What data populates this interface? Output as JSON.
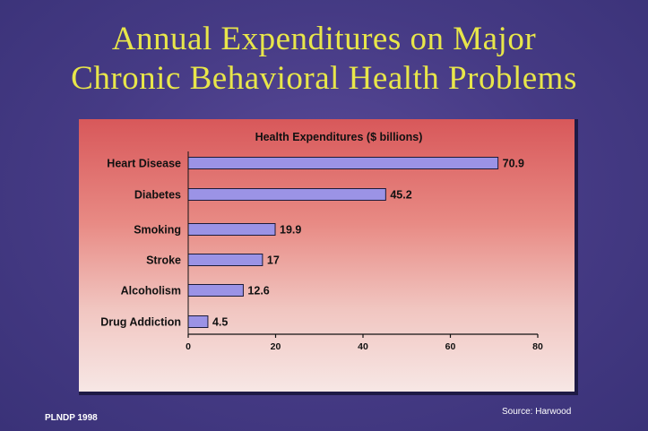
{
  "title_line1": "Annual Expenditures on  Major",
  "title_line2": "Chronic Behavioral Health Problems",
  "footer_left": "PLNDP  1998",
  "footer_right": "Source: Harwood",
  "chart_data": {
    "type": "bar",
    "orientation": "horizontal",
    "title": "Health Expenditures ($ billions)",
    "categories": [
      "Heart Disease",
      "Diabetes",
      "Smoking",
      "Stroke",
      "Alcoholism",
      "Drug Addiction"
    ],
    "values": [
      70.9,
      45.2,
      19.9,
      17,
      12.6,
      4.5
    ],
    "value_labels": [
      "70.9",
      "45.2",
      "19.9",
      "17",
      "12.6",
      "4.5"
    ],
    "xlim": [
      0,
      80
    ],
    "xticks": [
      0,
      20,
      40,
      60,
      80
    ],
    "grid": false,
    "bar_color": "#9b93e6"
  }
}
